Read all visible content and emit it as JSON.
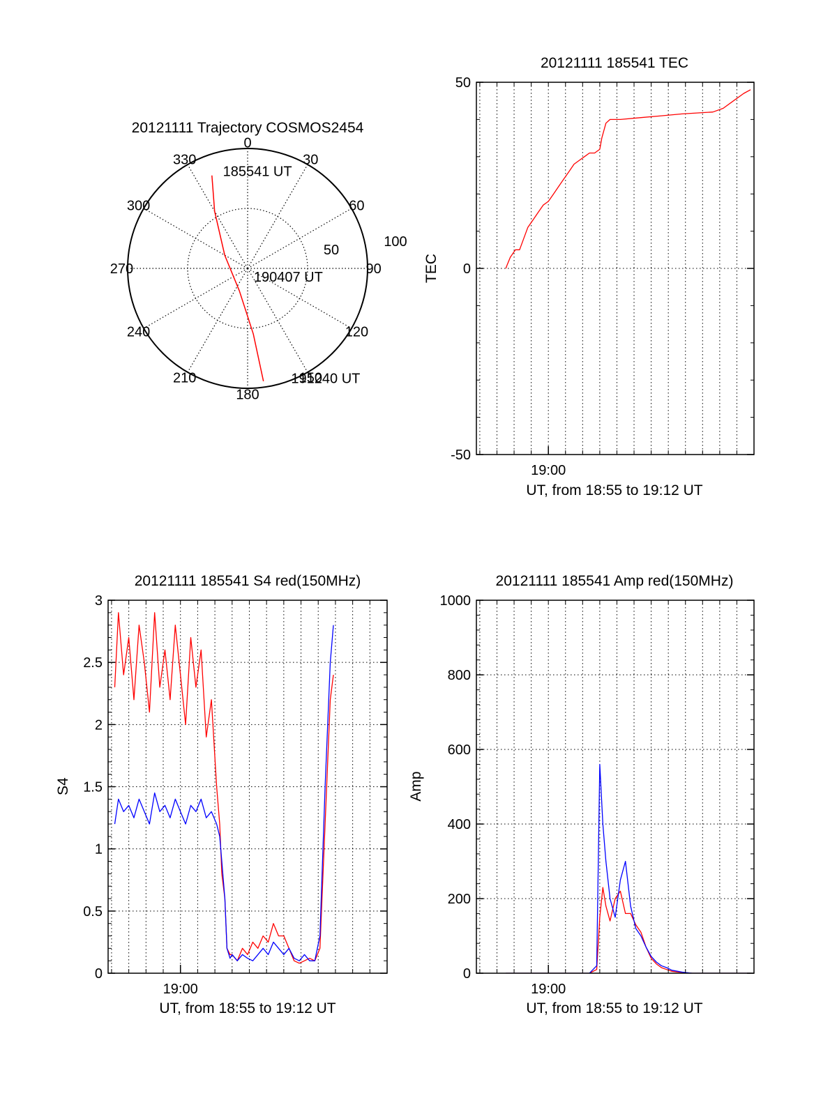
{
  "colors": {
    "red": "#ff0000",
    "blue": "#0000ff",
    "axis": "#000000",
    "grid": "#000000"
  },
  "chart_data": [
    {
      "id": "trajectory",
      "type": "polar",
      "title": "20121111 Trajectory COSMOS2454",
      "angle_labels": [
        "0",
        "30",
        "60",
        "90",
        "120",
        "150",
        "180",
        "210",
        "240",
        "270",
        "300",
        "330"
      ],
      "angles_deg": [
        0,
        30,
        60,
        90,
        120,
        150,
        180,
        210,
        240,
        270,
        300,
        330
      ],
      "radial_labels": [
        "50",
        "100"
      ],
      "radial_values": [
        50,
        100
      ],
      "rmax": 100,
      "grid": true,
      "series": [
        {
          "color": "#ff0000",
          "points": [
            {
              "az": 339,
              "zen": 83
            },
            {
              "az": 330,
              "zen": 55
            },
            {
              "az": 300,
              "zen": 22
            },
            {
              "az": 200,
              "zen": 20
            },
            {
              "az": 175,
              "zen": 55
            },
            {
              "az": 172,
              "zen": 95
            }
          ]
        }
      ],
      "annotations": [
        {
          "text": "185541 UT",
          "az": 345,
          "zen": 84
        },
        {
          "text": "190407 UT",
          "az": 150,
          "zen": 8
        },
        {
          "text": "191240 UT",
          "az": 159,
          "zen": 98
        }
      ]
    },
    {
      "id": "tec",
      "type": "line",
      "title": "20121111 185541 TEC",
      "ylabel": "TEC",
      "xlabel": "UT, from 18:55 to 19:12 UT",
      "xlim": [
        18.93,
        19.2
      ],
      "ylim": [
        -50,
        50
      ],
      "yticks": [
        -50,
        0,
        50
      ],
      "ytick_labels": [
        "-50",
        "0",
        "50"
      ],
      "xticks": [
        19.0
      ],
      "xtick_labels": [
        "19:00"
      ],
      "grid": true,
      "series": [
        {
          "color": "#ff0000",
          "x": [
            18.9586,
            18.96,
            18.963,
            18.968,
            18.972,
            18.976,
            18.98,
            18.985,
            18.99,
            18.995,
            19.0,
            19.005,
            19.01,
            19.015,
            19.02,
            19.025,
            19.03,
            19.035,
            19.04,
            19.045,
            19.05,
            19.052,
            19.056,
            19.06,
            19.07,
            19.09,
            19.11,
            19.13,
            19.16,
            19.17,
            19.18,
            19.19,
            19.1967
          ],
          "y": [
            0,
            1,
            3,
            5,
            5,
            8,
            11,
            13,
            15,
            17,
            18,
            20,
            22,
            24,
            26,
            28,
            29,
            30,
            31,
            31,
            32,
            35,
            39,
            40,
            40,
            40.5,
            41,
            41.5,
            42,
            43,
            45,
            47,
            48
          ]
        }
      ]
    },
    {
      "id": "s4",
      "type": "line",
      "title": "20121111 185541 S4 red(150MHz)",
      "ylabel": "S4",
      "xlabel": "UT, from 18:55 to 19:12 UT",
      "xlim": [
        18.93,
        19.2
      ],
      "ylim": [
        0,
        3
      ],
      "yticks": [
        0,
        0.5,
        1,
        1.5,
        2,
        2.5,
        3
      ],
      "ytick_labels": [
        "0",
        "0.5",
        "1",
        "1.5",
        "2",
        "2.5",
        "3"
      ],
      "xticks": [
        19.0
      ],
      "xtick_labels": [
        "19:00"
      ],
      "grid": true,
      "series": [
        {
          "color": "#ff0000",
          "x": [
            18.9364,
            18.94,
            18.945,
            18.95,
            18.955,
            18.96,
            18.965,
            18.97,
            18.975,
            18.98,
            18.985,
            18.99,
            18.995,
            19.0,
            19.005,
            19.01,
            19.015,
            19.02,
            19.025,
            19.03,
            19.035,
            19.038,
            19.04,
            19.043,
            19.045,
            19.048,
            19.05,
            19.055,
            19.06,
            19.065,
            19.07,
            19.075,
            19.08,
            19.085,
            19.09,
            19.095,
            19.1,
            19.105,
            19.11,
            19.115,
            19.12,
            19.125,
            19.13,
            19.135,
            19.14,
            19.145,
            19.148
          ],
          "y": [
            2.3,
            2.9,
            2.4,
            2.7,
            2.2,
            2.8,
            2.5,
            2.1,
            2.9,
            2.3,
            2.6,
            2.2,
            2.8,
            2.4,
            2.0,
            2.7,
            2.3,
            2.6,
            1.9,
            2.2,
            1.5,
            1.2,
            0.8,
            0.6,
            0.2,
            0.15,
            0.15,
            0.1,
            0.2,
            0.15,
            0.25,
            0.2,
            0.3,
            0.25,
            0.4,
            0.3,
            0.3,
            0.2,
            0.1,
            0.08,
            0.1,
            0.12,
            0.1,
            0.2,
            1.2,
            2.2,
            2.4
          ]
        },
        {
          "color": "#0000ff",
          "x": [
            18.9364,
            18.94,
            18.945,
            18.95,
            18.955,
            18.96,
            18.965,
            18.97,
            18.975,
            18.98,
            18.985,
            18.99,
            18.995,
            19.0,
            19.005,
            19.01,
            19.015,
            19.02,
            19.025,
            19.03,
            19.035,
            19.038,
            19.04,
            19.043,
            19.045,
            19.048,
            19.05,
            19.055,
            19.06,
            19.065,
            19.07,
            19.075,
            19.08,
            19.085,
            19.09,
            19.095,
            19.1,
            19.105,
            19.11,
            19.115,
            19.12,
            19.125,
            19.13,
            19.135,
            19.14,
            19.145,
            19.148
          ],
          "y": [
            1.2,
            1.4,
            1.3,
            1.35,
            1.25,
            1.4,
            1.3,
            1.2,
            1.45,
            1.3,
            1.35,
            1.25,
            1.4,
            1.3,
            1.2,
            1.35,
            1.3,
            1.4,
            1.25,
            1.3,
            1.2,
            1.1,
            0.9,
            0.6,
            0.2,
            0.12,
            0.15,
            0.1,
            0.15,
            0.12,
            0.1,
            0.15,
            0.2,
            0.15,
            0.25,
            0.2,
            0.15,
            0.2,
            0.12,
            0.1,
            0.15,
            0.1,
            0.1,
            0.3,
            1.5,
            2.5,
            2.8
          ]
        }
      ]
    },
    {
      "id": "amp",
      "type": "line",
      "title": "20121111 185541 Amp red(150MHz)",
      "ylabel": "Amp",
      "xlabel": "UT, from 18:55 to 19:12 UT",
      "xlim": [
        18.93,
        19.2
      ],
      "ylim": [
        0,
        1000
      ],
      "yticks": [
        0,
        200,
        400,
        600,
        800,
        1000
      ],
      "ytick_labels": [
        "0",
        "200",
        "400",
        "600",
        "800",
        "1000"
      ],
      "xticks": [
        19.0
      ],
      "xtick_labels": [
        "19:00"
      ],
      "grid": true,
      "series": [
        {
          "color": "#ff0000",
          "x": [
            18.9586,
            19.0,
            19.04,
            19.047,
            19.05,
            19.053,
            19.056,
            19.06,
            19.065,
            19.07,
            19.075,
            19.08,
            19.085,
            19.09,
            19.095,
            19.1,
            19.105,
            19.11,
            19.115,
            19.12,
            19.13,
            19.14,
            19.1967
          ],
          "y": [
            0,
            0,
            0,
            10,
            150,
            230,
            180,
            140,
            200,
            220,
            160,
            160,
            130,
            110,
            70,
            40,
            25,
            15,
            10,
            5,
            2,
            0,
            0
          ]
        },
        {
          "color": "#0000ff",
          "x": [
            18.9586,
            19.0,
            19.04,
            19.047,
            19.05,
            19.053,
            19.056,
            19.06,
            19.065,
            19.07,
            19.075,
            19.08,
            19.085,
            19.09,
            19.095,
            19.1,
            19.105,
            19.11,
            19.115,
            19.12,
            19.13,
            19.14,
            19.1967
          ],
          "y": [
            0,
            0,
            0,
            20,
            560,
            400,
            300,
            200,
            150,
            250,
            300,
            180,
            120,
            100,
            70,
            45,
            30,
            20,
            15,
            8,
            3,
            0,
            0
          ]
        }
      ]
    }
  ]
}
